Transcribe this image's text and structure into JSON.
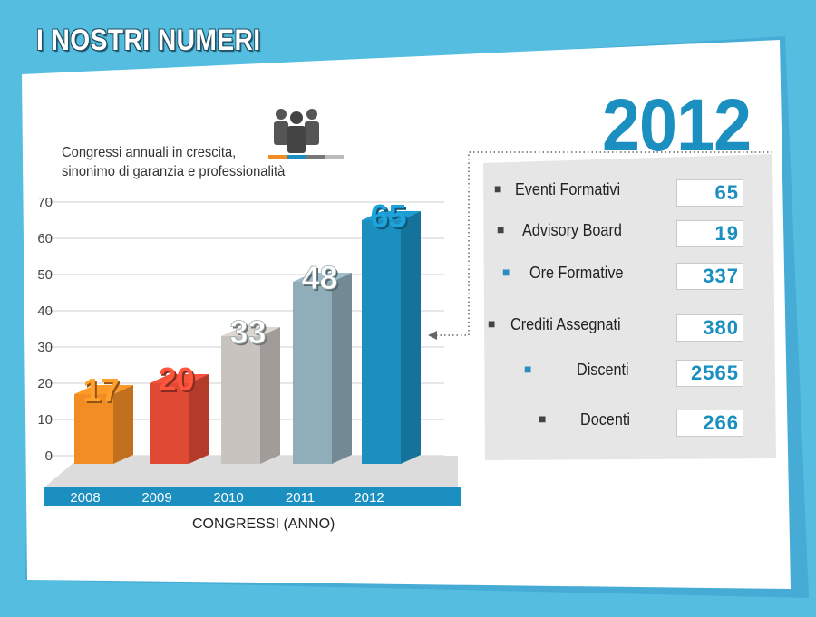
{
  "header": {
    "title": "I NOSTRI NUMERI"
  },
  "subtitle": {
    "line1": "Congressi annuali in crescita,",
    "line2": "sinonimo di garanzia e professionalità"
  },
  "highlight_year": "2012",
  "colors": {
    "background": "#54bde0",
    "panel": "#ffffff",
    "accent": "#1a8fc0",
    "stats_panel": "#e6e6e6",
    "axis_bar": "#1a8fc0"
  },
  "chart_data": {
    "type": "bar",
    "title": "",
    "xlabel": "CONGRESSI (ANNO)",
    "ylabel": "",
    "categories": [
      "2008",
      "2009",
      "2010",
      "2011",
      "2012"
    ],
    "values": [
      17,
      20,
      33,
      48,
      65
    ],
    "value_labels": [
      "17",
      "20",
      "33",
      "48",
      "65"
    ],
    "ylim": [
      0,
      70
    ],
    "yticks": [
      "0",
      "10",
      "20",
      "30",
      "40",
      "50",
      "60",
      "70"
    ],
    "grid": true,
    "bar_colors": [
      "#f28c25",
      "#e04a35",
      "#c9c3bf",
      "#90adba",
      "#1a8fc0"
    ]
  },
  "stats": [
    {
      "icon": "presenter-icon",
      "label": "Eventi Formativi",
      "value": "65"
    },
    {
      "icon": "board-icon",
      "label": "Advisory Board",
      "value": "19"
    },
    {
      "icon": "runner-icon",
      "label": "Ore Formative",
      "value": "337"
    },
    {
      "icon": "certificate-icon",
      "label": "Crediti Assegnati",
      "value": "380"
    },
    {
      "icon": "students-icon",
      "label": "Discenti",
      "value": "2565"
    },
    {
      "icon": "teacher-icon",
      "label": "Docenti",
      "value": "266"
    }
  ]
}
